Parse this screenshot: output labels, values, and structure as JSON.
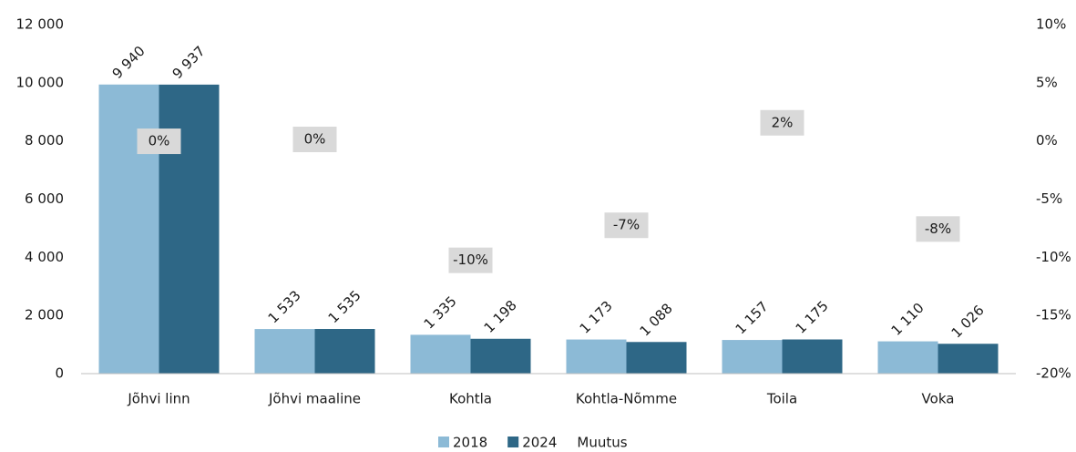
{
  "chart_data": {
    "type": "bar",
    "categories": [
      "Jõhvi linn",
      "Jõhvi maaline",
      "Kohtla",
      "Kohtla-Nõmme",
      "Toila",
      "Voka"
    ],
    "series": [
      {
        "name": "2018",
        "color": "#8cbad6",
        "values": [
          9940,
          1533,
          1335,
          1173,
          1157,
          1110
        ],
        "value_labels": [
          "9 940",
          "1 533",
          "1 335",
          "1 173",
          "1 157",
          "1 110"
        ]
      },
      {
        "name": "2024",
        "color": "#2e6786",
        "values": [
          9937,
          1535,
          1198,
          1088,
          1175,
          1026
        ],
        "value_labels": [
          "9 937",
          "1 535",
          "1 198",
          "1 088",
          "1 175",
          "1 026"
        ]
      },
      {
        "name": "Muutus",
        "axis": "y2",
        "values": [
          -0.03,
          0.13,
          -10.26,
          -7.25,
          1.56,
          -7.57
        ],
        "value_labels": [
          "0%",
          "0%",
          "-10%",
          "-7%",
          "2%",
          "-8%"
        ]
      }
    ],
    "ylim": [
      0,
      12000
    ],
    "yticks": [
      0,
      {
        "value": 2000,
        "label": "2 000"
      },
      {
        "value": 4000,
        "label": "4 000"
      },
      {
        "value": 6000,
        "label": "6 000"
      },
      {
        "value": 8000,
        "label": "8 000"
      },
      {
        "value": 10000,
        "label": "10 000"
      },
      {
        "value": 12000,
        "label": "12 000"
      }
    ],
    "y2lim": [
      -20,
      10
    ],
    "y2ticks": [
      {
        "value": -20,
        "label": "-20%"
      },
      {
        "value": -15,
        "label": "-15%"
      },
      {
        "value": -10,
        "label": "-10%"
      },
      {
        "value": -5,
        "label": "-5%"
      },
      {
        "value": 0,
        "label": "0%"
      },
      {
        "value": 5,
        "label": "5%"
      },
      {
        "value": 10,
        "label": "10%"
      }
    ],
    "legend": "bottom"
  }
}
